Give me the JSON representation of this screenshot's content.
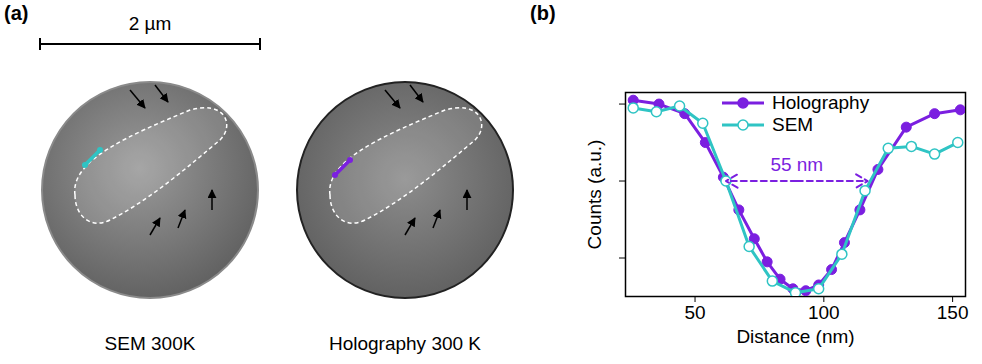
{
  "chart_data": {
    "type": "line",
    "x_label": "Distance (nm)",
    "y_label": "Counts (a.u.)",
    "xlim": [
      23,
      155
    ],
    "xticks": [
      50,
      100,
      150
    ],
    "ylim": [
      0,
      1.06
    ],
    "yticks": [
      0.2,
      0.6,
      1.0
    ],
    "tick_labels": "x",
    "legend": "top",
    "series": [
      {
        "name": "Holography",
        "color": "#7b1fe0",
        "marker": "filled_circle",
        "line_style": "solid",
        "x": [
          26,
          36,
          46,
          54,
          61,
          67,
          73,
          78,
          83,
          88,
          93,
          98,
          103,
          108,
          114,
          121,
          132,
          143,
          153
        ],
        "values": [
          1.02,
          1.0,
          0.95,
          0.8,
          0.62,
          0.45,
          0.3,
          0.18,
          0.09,
          0.04,
          0.03,
          0.06,
          0.14,
          0.28,
          0.45,
          0.66,
          0.88,
          0.95,
          0.97
        ]
      },
      {
        "name": "SEM",
        "color": "#2fc4c4",
        "marker": "open_circle",
        "line_style": "solid",
        "x": [
          26,
          35,
          44,
          53,
          62,
          71,
          80,
          89,
          98,
          107,
          116,
          125,
          134,
          143,
          152
        ],
        "values": [
          0.98,
          0.96,
          0.99,
          0.9,
          0.6,
          0.26,
          0.08,
          0.02,
          0.04,
          0.22,
          0.55,
          0.77,
          0.78,
          0.74,
          0.8
        ]
      }
    ],
    "annotations": [
      {
        "text": "55 nm",
        "x1": 62,
        "x2": 117,
        "y": 0.6,
        "color": "#7b1fe0",
        "line_style": "dashed"
      }
    ]
  },
  "figure": {
    "panel_labels": [
      "(a)",
      "(b)"
    ],
    "scale_bar": "2 µm",
    "images": [
      {
        "caption": "SEM 300K"
      },
      {
        "caption": "Holography 300 K"
      }
    ]
  }
}
